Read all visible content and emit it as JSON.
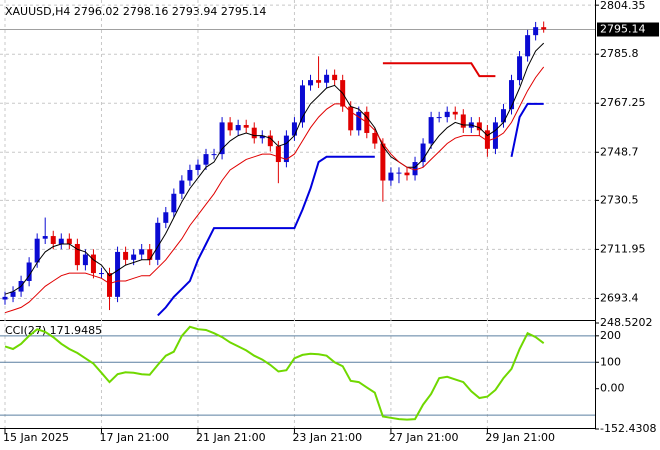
{
  "chart_data": [
    {
      "type": "candlestick",
      "title": "XAUUSD,H4  2796.02 2798.16 2793.94 2795.14",
      "categories": [
        "15 Jan 2025",
        null,
        null,
        null,
        null,
        null,
        null,
        null,
        null,
        null,
        null,
        null,
        "17 Jan 21:00",
        null,
        null,
        null,
        null,
        null,
        null,
        null,
        null,
        null,
        null,
        null,
        "21 Jan 21:00",
        null,
        null,
        null,
        null,
        null,
        null,
        null,
        null,
        null,
        null,
        null,
        "23 Jan 21:00",
        null,
        null,
        null,
        null,
        null,
        null,
        null,
        null,
        null,
        null,
        null,
        "27 Jan 21:00",
        null,
        null,
        null,
        null,
        null,
        null,
        null,
        null,
        null,
        null,
        null,
        "29 Jan 21:00",
        null,
        null,
        null,
        null,
        null,
        null,
        null
      ],
      "open": [
        2693,
        2694,
        2696,
        2700,
        2707,
        2716,
        2717,
        2714,
        2716,
        2714,
        2706,
        2710,
        2703,
        2703,
        2694,
        2711,
        2708,
        2710,
        2712,
        2708,
        2722,
        2726,
        2733,
        2738,
        2742,
        2744,
        2748,
        2748,
        2760,
        2757,
        2759,
        2758,
        2754,
        2755,
        2751,
        2745,
        2755,
        2760,
        2774,
        2776,
        2775,
        2778,
        2776,
        2766,
        2757,
        2764,
        2756,
        2752,
        2738,
        2741,
        2741,
        2740,
        2745,
        2752,
        2762,
        2762,
        2764,
        2763,
        2758,
        2760,
        2757,
        2750,
        2760,
        2765,
        2776,
        2785,
        2793,
        2796.02
      ],
      "high": [
        2696,
        2698,
        2702,
        2709,
        2718,
        2724,
        2719,
        2718,
        2718,
        2716,
        2712,
        2712,
        2705,
        2705,
        2713,
        2713,
        2712,
        2714,
        2714,
        2724,
        2728,
        2735,
        2740,
        2744,
        2746,
        2750,
        2750,
        2762,
        2762,
        2761,
        2761,
        2760,
        2757,
        2757,
        2753,
        2757,
        2762,
        2776,
        2778,
        2785,
        2780,
        2780,
        2778,
        2768,
        2766,
        2766,
        2758,
        2754,
        2743,
        2743,
        2743,
        2747,
        2754,
        2764,
        2764,
        2766,
        2766,
        2765,
        2762,
        2762,
        2759,
        2762,
        2767,
        2778,
        2787,
        2795,
        2798,
        2798.16
      ],
      "low": [
        2691,
        2692,
        2694,
        2698,
        2705,
        2714,
        2712,
        2712,
        2712,
        2704,
        2704,
        2701,
        2701,
        2689,
        2692,
        2706,
        2706,
        2708,
        2706,
        2706,
        2720,
        2724,
        2731,
        2736,
        2740,
        2742,
        2746,
        2746,
        2755,
        2755,
        2756,
        2752,
        2752,
        2749,
        2737,
        2743,
        2753,
        2758,
        2772,
        2773,
        2773,
        2774,
        2764,
        2755,
        2755,
        2754,
        2750,
        2730,
        2736,
        2737,
        2738,
        2738,
        2743,
        2750,
        2760,
        2760,
        2761,
        2756,
        2756,
        2755,
        2747,
        2748,
        2758,
        2763,
        2774,
        2783,
        2791,
        2793.94
      ],
      "close": [
        2694,
        2696,
        2700,
        2707,
        2716,
        2717,
        2714,
        2716,
        2714,
        2706,
        2710,
        2703,
        2703,
        2694,
        2711,
        2708,
        2710,
        2712,
        2708,
        2722,
        2726,
        2733,
        2738,
        2742,
        2744,
        2748,
        2748,
        2760,
        2757,
        2759,
        2758,
        2754,
        2755,
        2751,
        2745,
        2755,
        2760,
        2774,
        2776,
        2775,
        2778,
        2776,
        2766,
        2757,
        2764,
        2756,
        2752,
        2738,
        2741,
        2741,
        2740,
        2745,
        2752,
        2762,
        2762,
        2764,
        2763,
        2758,
        2760,
        2757,
        2750,
        2760,
        2765,
        2776,
        2785,
        2793,
        2796.02,
        2795.14
      ],
      "up_color": "#0a0ad2",
      "down_color": "#e00000",
      "series": [
        {
          "color": "#000000",
          "width": 1,
          "values": [
            2695,
            2696,
            2698,
            2702,
            2707,
            2711,
            2713,
            2714,
            2714,
            2712,
            2711,
            2708,
            2706,
            2702,
            2704,
            2706,
            2707,
            2708,
            2708,
            2713,
            2718,
            2724,
            2730,
            2735,
            2739,
            2743,
            2745,
            2750,
            2753,
            2755,
            2756,
            2755,
            2755,
            2754,
            2751,
            2752,
            2755,
            2762,
            2767,
            2770,
            2773,
            2774,
            2771,
            2766,
            2765,
            2762,
            2758,
            2751,
            2747,
            2745,
            2743,
            2743,
            2746,
            2751,
            2755,
            2758,
            2760,
            2759,
            2759,
            2758,
            2755,
            2757,
            2760,
            2766,
            2773,
            2781,
            2787,
            2790
          ]
        },
        {
          "color": "#e00000",
          "width": 1,
          "values": [
            2688,
            2689,
            2690,
            2692,
            2695,
            2698,
            2700,
            2702,
            2703,
            2703,
            2703,
            2702,
            2701,
            2699,
            2700,
            2700,
            2701,
            2702,
            2702,
            2705,
            2708,
            2712,
            2716,
            2721,
            2725,
            2729,
            2733,
            2738,
            2742,
            2744,
            2746,
            2747,
            2748,
            2748,
            2747,
            2746,
            2748,
            2753,
            2758,
            2762,
            2765,
            2767,
            2767,
            2764,
            2762,
            2760,
            2757,
            2752,
            2748,
            2745,
            2743,
            2742,
            2743,
            2746,
            2749,
            2752,
            2754,
            2755,
            2755,
            2755,
            2753,
            2754,
            2756,
            2760,
            2766,
            2772,
            2777,
            2781
          ]
        },
        {
          "color": "#0000dd",
          "width": 2,
          "values": [
            null,
            null,
            null,
            null,
            null,
            null,
            null,
            null,
            null,
            null,
            null,
            null,
            null,
            null,
            null,
            null,
            null,
            null,
            null,
            2687,
            2690,
            2694,
            2697,
            2700,
            2708,
            2714,
            2720,
            2720,
            2720,
            2720,
            2720,
            2720,
            2720,
            2720,
            2720,
            2720,
            2720,
            2727,
            2735,
            2745,
            2747,
            2747,
            2747,
            2747,
            2747,
            2747,
            2747,
            null,
            null,
            null,
            null,
            null,
            null,
            null,
            null,
            null,
            null,
            null,
            null,
            null,
            null,
            null,
            null,
            2747,
            2762,
            2767,
            2767,
            2767
          ]
        },
        {
          "color": "#e00000",
          "width": 2,
          "values": [
            null,
            null,
            null,
            null,
            null,
            null,
            null,
            null,
            null,
            null,
            null,
            null,
            null,
            null,
            null,
            null,
            null,
            null,
            null,
            null,
            null,
            null,
            null,
            null,
            null,
            null,
            null,
            null,
            null,
            null,
            null,
            null,
            null,
            null,
            null,
            null,
            null,
            null,
            null,
            null,
            null,
            null,
            null,
            null,
            null,
            null,
            null,
            2782.4,
            2782.4,
            2782.4,
            2782.4,
            2782.4,
            2782.4,
            2782.4,
            2782.4,
            2782.4,
            2782.4,
            2782.4,
            2782.4,
            2777.5,
            2777.5,
            2777.5,
            null,
            null,
            null,
            null,
            null,
            null
          ]
        }
      ],
      "last_price": 2795.14,
      "ylim": [
        2686,
        2806.3
      ],
      "yticks": [
        2804.35,
        2785.8,
        2767.25,
        2748.7,
        2730.5,
        2711.95,
        2693.4
      ],
      "grid": true
    },
    {
      "type": "line",
      "title": "CCI(27) 171.9485",
      "color": "#70d800",
      "values": [
        160,
        150,
        170,
        200,
        225,
        215,
        195,
        170,
        150,
        135,
        115,
        95,
        60,
        25,
        55,
        62,
        60,
        55,
        53,
        90,
        125,
        140,
        200,
        234,
        225,
        222,
        210,
        195,
        175,
        160,
        145,
        125,
        110,
        90,
        65,
        70,
        115,
        128,
        132,
        130,
        125,
        100,
        85,
        30,
        25,
        5,
        -15,
        -105,
        -110,
        -115,
        -117,
        -115,
        -60,
        -20,
        40,
        45,
        35,
        25,
        -10,
        -35,
        -30,
        -5,
        40,
        75,
        150,
        210,
        195,
        171.9485
      ],
      "levels": [
        200,
        100,
        -100
      ],
      "ylim": [
        -152.4308,
        248.5202
      ],
      "yticks": [
        248.5202,
        200,
        100,
        {
          "value": 0,
          "label": "0.00"
        },
        -152.4308
      ]
    }
  ]
}
